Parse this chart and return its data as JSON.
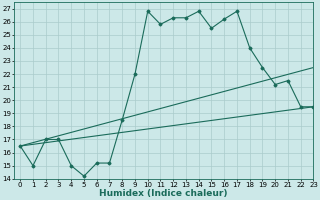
{
  "xlabel": "Humidex (Indice chaleur)",
  "ylabel": "",
  "bg_color": "#cce8e8",
  "grid_color": "#aacccc",
  "line_color": "#1a6b5a",
  "xlim": [
    -0.5,
    23
  ],
  "ylim": [
    14,
    27.5
  ],
  "xticks": [
    0,
    1,
    2,
    3,
    4,
    5,
    6,
    7,
    8,
    9,
    10,
    11,
    12,
    13,
    14,
    15,
    16,
    17,
    18,
    19,
    20,
    21,
    22,
    23
  ],
  "yticks": [
    14,
    15,
    16,
    17,
    18,
    19,
    20,
    21,
    22,
    23,
    24,
    25,
    26,
    27
  ],
  "series1_x": [
    0,
    1,
    2,
    3,
    4,
    5,
    6,
    7,
    8,
    9,
    10,
    11,
    12,
    13,
    14,
    15,
    16,
    17,
    18,
    19,
    20,
    21,
    22,
    23
  ],
  "series1_y": [
    16.5,
    15.0,
    17.0,
    17.0,
    15.0,
    14.2,
    15.2,
    15.2,
    18.5,
    22.0,
    26.8,
    25.8,
    26.3,
    26.3,
    26.8,
    25.5,
    26.2,
    26.8,
    24.0,
    22.5,
    21.2,
    21.5,
    19.5,
    19.5
  ],
  "series2_x": [
    0,
    23
  ],
  "series2_y": [
    16.5,
    19.5
  ],
  "series3_x": [
    0,
    23
  ],
  "series3_y": [
    16.5,
    22.5
  ],
  "fontsize_ticks": 5.0,
  "fontsize_label": 6.5
}
